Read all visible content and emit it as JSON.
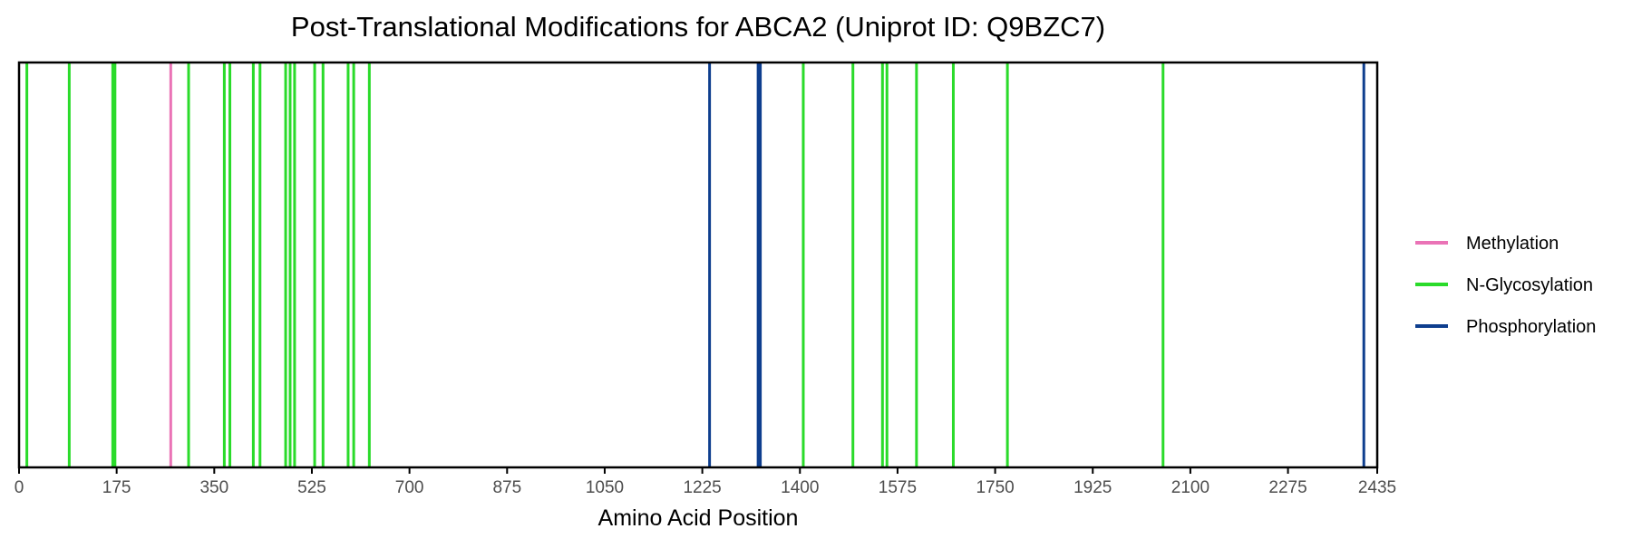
{
  "chart_data": {
    "type": "line",
    "title": "Post-Translational Modifications for ABCA2 (Uniprot ID: Q9BZC7)",
    "xlabel": "Amino Acid Position",
    "ylabel": "",
    "xlim": [
      0,
      2435
    ],
    "xticks": [
      0,
      175,
      350,
      525,
      700,
      875,
      1050,
      1225,
      1400,
      1575,
      1750,
      1925,
      2100,
      2275,
      2435
    ],
    "grid": false,
    "legend_position": "right",
    "series": [
      {
        "name": "Methylation",
        "color": "#EA73B6",
        "positions": [
          272
        ]
      },
      {
        "name": "N-Glycosylation",
        "color": "#2ADB2A",
        "positions": [
          14,
          90,
          168,
          172,
          304,
          368,
          378,
          420,
          432,
          478,
          486,
          494,
          530,
          545,
          590,
          600,
          628,
          1406,
          1495,
          1548,
          1556,
          1609,
          1675,
          1772,
          2051
        ]
      },
      {
        "name": "Phosphorylation",
        "color": "#0E3E8E",
        "positions": [
          1238,
          1325,
          1329,
          2411
        ]
      }
    ]
  }
}
